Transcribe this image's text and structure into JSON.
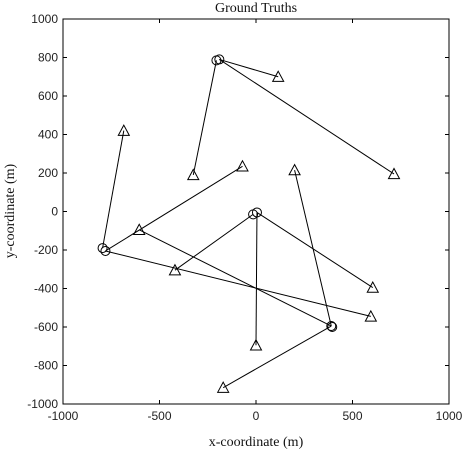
{
  "chart_data": {
    "type": "scatter",
    "title": "Ground Truths",
    "xlabel": "x-coordinate (m)",
    "ylabel": "y-coordinate (m)",
    "xlim": [
      -1000,
      1000
    ],
    "ylim": [
      -1000,
      1000
    ],
    "xticks": [
      -1000,
      -500,
      0,
      500,
      1000
    ],
    "yticks": [
      -1000,
      -800,
      -600,
      -400,
      -200,
      0,
      200,
      400,
      600,
      800,
      1000
    ],
    "grid": false,
    "line_color": "#000000",
    "series": [
      {
        "marker": "circle",
        "points": [
          {
            "x": -190,
            "y": 790
          },
          {
            "x": -205,
            "y": 785
          },
          {
            "x": -795,
            "y": -190
          },
          {
            "x": -780,
            "y": -205
          },
          {
            "x": -15,
            "y": -15
          },
          {
            "x": 5,
            "y": -5
          },
          {
            "x": 390,
            "y": -595
          },
          {
            "x": 395,
            "y": -600
          }
        ]
      },
      {
        "marker": "triangle",
        "points": [
          {
            "x": 115,
            "y": 700
          },
          {
            "x": 715,
            "y": 195
          },
          {
            "x": -325,
            "y": 190
          },
          {
            "x": -685,
            "y": 420
          },
          {
            "x": -70,
            "y": 235
          },
          {
            "x": -605,
            "y": -95
          },
          {
            "x": -420,
            "y": -305
          },
          {
            "x": 200,
            "y": 215
          },
          {
            "x": 605,
            "y": -395
          },
          {
            "x": 595,
            "y": -545
          },
          {
            "x": 0,
            "y": -695
          },
          {
            "x": -170,
            "y": -915
          }
        ]
      }
    ],
    "segments": [
      {
        "from": [
          -190,
          790
        ],
        "to": [
          115,
          700
        ]
      },
      {
        "from": [
          -190,
          790
        ],
        "to": [
          715,
          195
        ]
      },
      {
        "from": [
          -205,
          785
        ],
        "to": [
          -325,
          190
        ]
      },
      {
        "from": [
          -795,
          -190
        ],
        "to": [
          -685,
          420
        ]
      },
      {
        "from": [
          -780,
          -205
        ],
        "to": [
          -70,
          235
        ]
      },
      {
        "from": [
          -780,
          -205
        ],
        "to": [
          595,
          -545
        ]
      },
      {
        "from": [
          -605,
          -95
        ],
        "to": [
          390,
          -595
        ]
      },
      {
        "from": [
          -15,
          -15
        ],
        "to": [
          -420,
          -305
        ]
      },
      {
        "from": [
          5,
          -5
        ],
        "to": [
          605,
          -395
        ]
      },
      {
        "from": [
          5,
          -5
        ],
        "to": [
          0,
          -695
        ]
      },
      {
        "from": [
          390,
          -595
        ],
        "to": [
          200,
          215
        ]
      },
      {
        "from": [
          390,
          -595
        ],
        "to": [
          -170,
          -915
        ]
      }
    ]
  }
}
